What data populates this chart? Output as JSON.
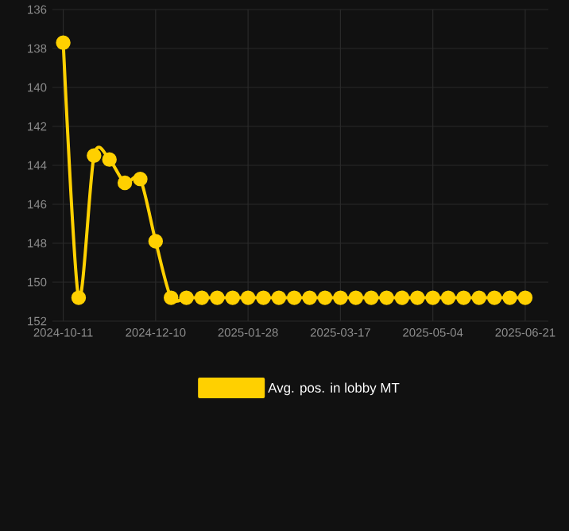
{
  "chart_data": {
    "type": "line",
    "categories": [
      "2024-10-11",
      null,
      null,
      null,
      null,
      null,
      "2024-12-10",
      null,
      null,
      null,
      null,
      null,
      "2025-01-28",
      null,
      null,
      null,
      null,
      null,
      "2025-03-17",
      null,
      null,
      null,
      null,
      null,
      "2025-05-04",
      null,
      null,
      null,
      null,
      null,
      "2025-06-21"
    ],
    "series": [
      {
        "name": "Avg. pos. in lobby MT",
        "color": "#ffd000",
        "values": [
          137.7,
          150.8,
          143.5,
          143.7,
          144.9,
          144.7,
          147.9,
          150.8,
          150.8,
          150.8,
          150.8,
          150.8,
          150.8,
          150.8,
          150.8,
          150.8,
          150.8,
          150.8,
          150.8,
          150.8,
          150.8,
          150.8,
          150.8,
          150.8,
          150.8,
          150.8,
          150.8,
          150.8,
          150.8,
          150.8,
          150.8
        ]
      }
    ],
    "ylim": [
      152,
      136
    ],
    "yticks": [
      136,
      138,
      140,
      142,
      144,
      146,
      148,
      150,
      152
    ],
    "grid": true,
    "legend": "bottom",
    "marker": "circle",
    "line_style": "solid"
  }
}
